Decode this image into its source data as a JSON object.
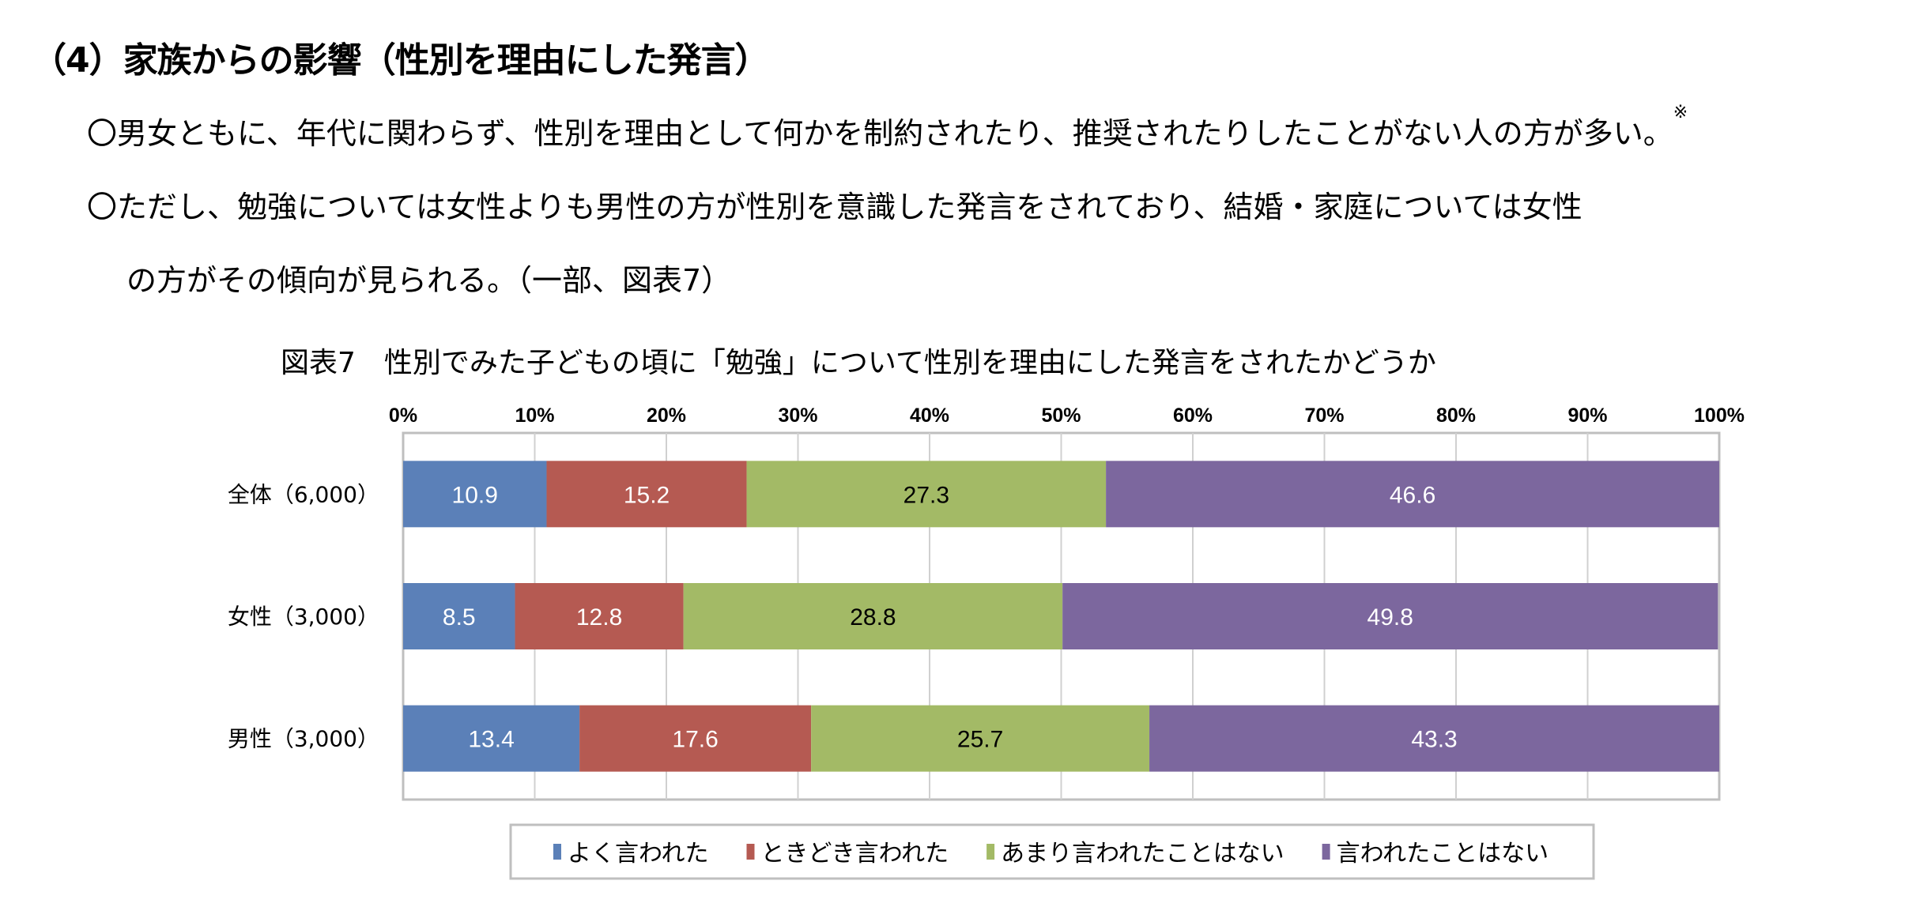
{
  "section_title": "（4）家族からの影響（性別を理由にした発言）",
  "bullets": [
    "〇男女ともに、年代に関わらず、性別を理由として何かを制約されたり、推奨されたりしたことがない人の方が多い。",
    "〇ただし、勉強については女性よりも男性の方が性別を意識した発言をされており、結婚・家庭については女性",
    "の方がその傾向が見られる。（一部、図表7）"
  ],
  "note_mark": "※",
  "chart_data": {
    "type": "bar",
    "orientation": "horizontal",
    "stacked": "percent",
    "title": "図表7　性別でみた子どもの頃に「勉強」について性別を理由にした発言をされたかどうか",
    "categories": [
      "全体（6,000）",
      "女性（3,000）",
      "男性（3,000）"
    ],
    "xlim": [
      0,
      100
    ],
    "xticks": [
      "0%",
      "10%",
      "20%",
      "30%",
      "40%",
      "50%",
      "60%",
      "70%",
      "80%",
      "90%",
      "100%"
    ],
    "grid": true,
    "legend_position": "bottom",
    "series": [
      {
        "name": "よく言われた",
        "color": "#5b80b8",
        "label_color": "#ffffff",
        "values": [
          10.9,
          8.5,
          13.4
        ]
      },
      {
        "name": "ときどき言われた",
        "color": "#b55a52",
        "label_color": "#ffffff",
        "values": [
          15.2,
          12.8,
          17.6
        ]
      },
      {
        "name": "あまり言われたことはない",
        "color": "#a3ba66",
        "label_color": "#000000",
        "values": [
          27.3,
          28.8,
          25.7
        ]
      },
      {
        "name": "言われたことはない",
        "color": "#7c679e",
        "label_color": "#ffffff",
        "values": [
          46.6,
          49.8,
          43.3
        ]
      }
    ]
  }
}
